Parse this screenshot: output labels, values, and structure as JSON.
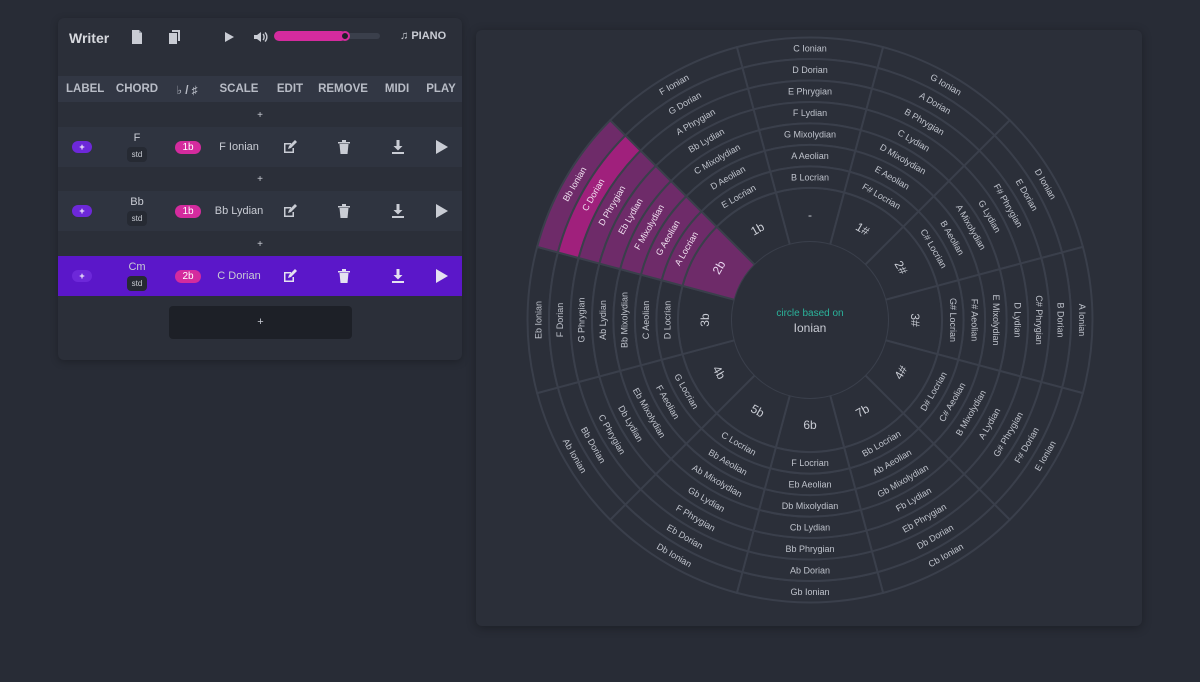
{
  "toolbar": {
    "title": "Writer",
    "piano_label": "PIANO",
    "volume_level": 0.68
  },
  "table": {
    "headers": [
      "LABEL",
      "CHORD",
      "♭ / ♯",
      "SCALE",
      "EDIT",
      "REMOVE",
      "MIDI",
      "PLAY"
    ],
    "insert_label": "+",
    "rows": [
      {
        "label": "+",
        "chord": "F",
        "chord_type": "std",
        "accidentals": "1b",
        "scale": "F Ionian",
        "active": false
      },
      {
        "label": "+",
        "chord": "Bb",
        "chord_type": "std",
        "accidentals": "1b",
        "scale": "Bb Lydian",
        "active": false
      },
      {
        "label": "+",
        "chord": "Cm",
        "chord_type": "std",
        "accidentals": "2b",
        "scale": "C Dorian",
        "active": true
      }
    ],
    "add_row_label": "+"
  },
  "circle": {
    "center_caption": "circle based on",
    "center_mode": "Ionian",
    "highlight_color": "#6e2b69",
    "highlight_strong_color": "#a0207c",
    "highlight_sector": "2b",
    "highlight_strong_mode": "Dorian",
    "sectors": [
      {
        "key": "-",
        "modes": [
          "C Ionian",
          "D Dorian",
          "E Phrygian",
          "F Lydian",
          "G Mixolydian",
          "A Aeolian",
          "B Locrian"
        ]
      },
      {
        "key": "1#",
        "modes": [
          "G Ionian",
          "A Dorian",
          "B Phrygian",
          "C Lydian",
          "D Mixolydian",
          "E Aeolian",
          "F# Locrian"
        ]
      },
      {
        "key": "2#",
        "modes": [
          "D Ionian",
          "E Dorian",
          "F# Phrygian",
          "G Lydian",
          "A Mixolydian",
          "B Aeolian",
          "C# Locrian"
        ]
      },
      {
        "key": "3#",
        "modes": [
          "A Ionian",
          "B Dorian",
          "C# Phrygian",
          "D Lydian",
          "E Mixolydian",
          "F# Aeolian",
          "G# Locrian"
        ]
      },
      {
        "key": "4#",
        "modes": [
          "E Ionian",
          "F# Dorian",
          "G# Phrygian",
          "A Lydian",
          "B Mixolydian",
          "C# Aeolian",
          "D# Locrian"
        ]
      },
      {
        "key": "7b",
        "modes": [
          "Cb Ionian",
          "Db Dorian",
          "Eb Phrygian",
          "Fb Lydian",
          "Gb Mixolydian",
          "Ab Aeolian",
          "Bb Locrian"
        ]
      },
      {
        "key": "6b",
        "modes": [
          "Gb Ionian",
          "Ab Dorian",
          "Bb Phrygian",
          "Cb Lydian",
          "Db Mixolydian",
          "Eb Aeolian",
          "F Locrian"
        ]
      },
      {
        "key": "5b",
        "modes": [
          "Db Ionian",
          "Eb Dorian",
          "F Phrygian",
          "Gb Lydian",
          "Ab Mixolydian",
          "Bb Aeolian",
          "C Locrian"
        ]
      },
      {
        "key": "4b",
        "modes": [
          "Ab Ionian",
          "Bb Dorian",
          "C Phrygian",
          "Db Lydian",
          "Eb Mixolydian",
          "F Aeolian",
          "G Locrian"
        ]
      },
      {
        "key": "3b",
        "modes": [
          "Eb Ionian",
          "F Dorian",
          "G Phrygian",
          "Ab Lydian",
          "Bb Mixolydian",
          "C Aeolian",
          "D Locrian"
        ]
      },
      {
        "key": "2b",
        "modes": [
          "Bb Ionian",
          "C Dorian",
          "D Phrygian",
          "Eb Lydian",
          "F Mixolydian",
          "G Aeolian",
          "A Locrian"
        ]
      },
      {
        "key": "1b",
        "modes": [
          "F Ionian",
          "G Dorian",
          "A Phrygian",
          "Bb Lydian",
          "C Mixolydian",
          "D Aeolian",
          "E Locrian"
        ]
      }
    ]
  }
}
